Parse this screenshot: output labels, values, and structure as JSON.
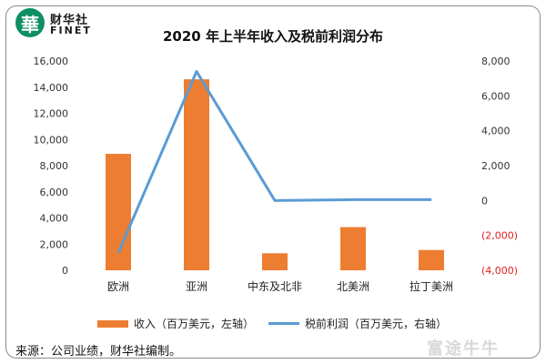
{
  "brand": {
    "name_cn": "财华社",
    "name_en": "FINET",
    "logo_char": "華"
  },
  "watermark_text": "富途牛牛",
  "source": "来源：公司业绩，财华社编制。",
  "colors": {
    "bar": "#ed7d31",
    "line": "#5b9bd5",
    "negative_tick": "#e02020",
    "brand": "#0e8f62"
  },
  "chart_data": {
    "type": "bar",
    "title": "2020 年上半年收入及税前利润分布",
    "categories": [
      "欧洲",
      "亚洲",
      "中东及北非",
      "北美洲",
      "拉丁美洲"
    ],
    "series": [
      {
        "name": "收入（百万美元，左轴）",
        "type": "bar",
        "axis": "left",
        "values": [
          8900,
          14600,
          1300,
          3300,
          1550
        ]
      },
      {
        "name": "税前利润（百万美元，右轴）",
        "type": "line",
        "axis": "right",
        "values": [
          -3000,
          7400,
          0,
          50,
          50
        ]
      }
    ],
    "y_left": {
      "min": 0,
      "max": 16000,
      "ticks": [
        0,
        2000,
        4000,
        6000,
        8000,
        10000,
        12000,
        14000,
        16000
      ],
      "tick_labels": [
        "0",
        "2,000",
        "4,000",
        "6,000",
        "8,000",
        "10,000",
        "12,000",
        "14,000",
        "16,000"
      ]
    },
    "y_right": {
      "min": -4000,
      "max": 8000,
      "ticks": [
        -4000,
        -2000,
        0,
        2000,
        4000,
        6000,
        8000
      ],
      "tick_labels": [
        "(4,000)",
        "(2,000)",
        "0",
        "2,000",
        "4,000",
        "6,000",
        "8,000"
      ]
    },
    "legend_position": "bottom",
    "grid": false
  }
}
